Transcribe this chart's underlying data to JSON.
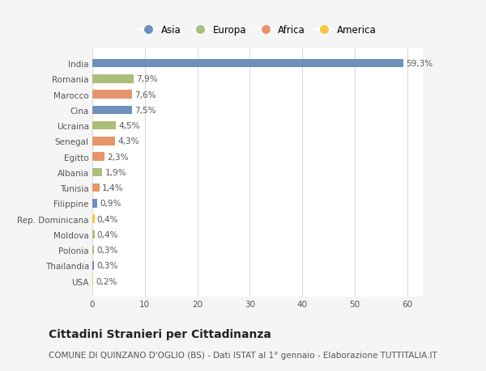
{
  "categories": [
    "India",
    "Romania",
    "Marocco",
    "Cina",
    "Ucraina",
    "Senegal",
    "Egitto",
    "Albania",
    "Tunisia",
    "Filippine",
    "Rep. Dominicana",
    "Moldova",
    "Polonia",
    "Thailandia",
    "USA"
  ],
  "values": [
    59.3,
    7.9,
    7.6,
    7.5,
    4.5,
    4.3,
    2.3,
    1.9,
    1.4,
    0.9,
    0.4,
    0.4,
    0.3,
    0.3,
    0.2
  ],
  "labels": [
    "59,3%",
    "7,9%",
    "7,6%",
    "7,5%",
    "4,5%",
    "4,3%",
    "2,3%",
    "1,9%",
    "1,4%",
    "0,9%",
    "0,4%",
    "0,4%",
    "0,3%",
    "0,3%",
    "0,2%"
  ],
  "colors": [
    "#6f8fbd",
    "#abbe7a",
    "#e8946a",
    "#6f8fbd",
    "#abbe7a",
    "#e8946a",
    "#e8946a",
    "#abbe7a",
    "#e8946a",
    "#6f8fbd",
    "#f5c842",
    "#abbe7a",
    "#abbe7a",
    "#6f8fbd",
    "#f5c842"
  ],
  "legend_labels": [
    "Asia",
    "Europa",
    "Africa",
    "America"
  ],
  "legend_colors": [
    "#6f8fbd",
    "#abbe7a",
    "#e8946a",
    "#f5c842"
  ],
  "title": "Cittadini Stranieri per Cittadinanza",
  "subtitle": "COMUNE DI QUINZANO D'OGLIO (BS) - Dati ISTAT al 1° gennaio - Elaborazione TUTTITALIA.IT",
  "xlim": [
    0,
    63
  ],
  "xticks": [
    0,
    10,
    20,
    30,
    40,
    50,
    60
  ],
  "background_color": "#f5f5f5",
  "bar_background": "#ffffff",
  "grid_color": "#d8d8d8",
  "title_fontsize": 10,
  "subtitle_fontsize": 7.5,
  "label_fontsize": 7.5,
  "tick_fontsize": 7.5,
  "legend_fontsize": 8.5
}
